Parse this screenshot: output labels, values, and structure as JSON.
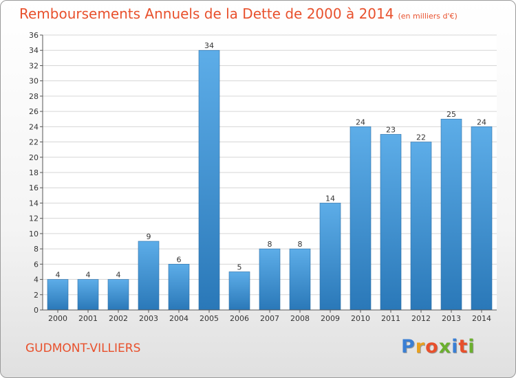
{
  "title": "Remboursements Annuels de la Dette de 2000 à 2014",
  "subtitle": "(en milliers d'€)",
  "place": "GUDMONT-VILLIERS",
  "brand": {
    "name": "Proxiti",
    "letter_colors": [
      "#3a7fd4",
      "#e8a020",
      "#e8502c",
      "#6bb02e",
      "#3a7fd4",
      "#e8502c",
      "#6bb02e"
    ]
  },
  "colors": {
    "bar_light": "#5dade8",
    "bar_dark": "#2a78b8",
    "accent": "#e8502c"
  },
  "chart_data": {
    "type": "bar",
    "categories": [
      "2000",
      "2001",
      "2002",
      "2003",
      "2004",
      "2005",
      "2006",
      "2007",
      "2008",
      "2009",
      "2010",
      "2011",
      "2012",
      "2013",
      "2014"
    ],
    "values": [
      4,
      4,
      4,
      9,
      6,
      34,
      5,
      8,
      8,
      14,
      24,
      23,
      22,
      25,
      24
    ],
    "ylim": [
      0,
      36
    ],
    "yticks": [
      0,
      2,
      4,
      6,
      8,
      10,
      12,
      14,
      16,
      18,
      20,
      22,
      24,
      26,
      28,
      30,
      32,
      34,
      36
    ],
    "grid": true,
    "data_labels": true
  }
}
